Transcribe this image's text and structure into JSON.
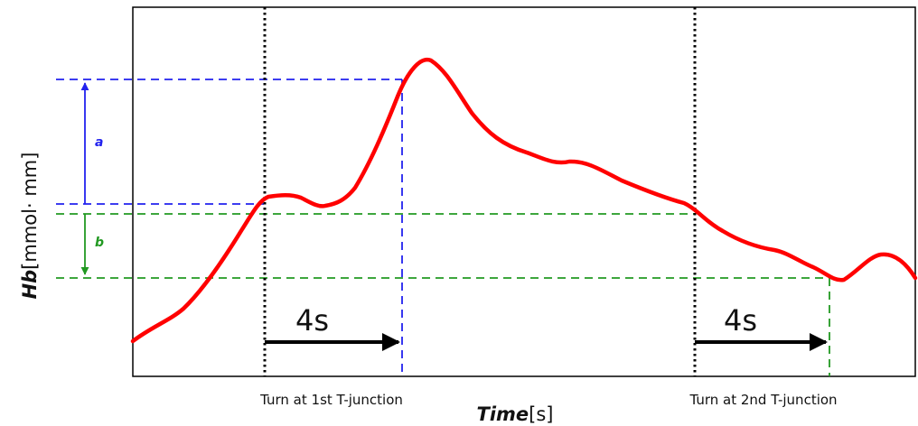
{
  "axes": {
    "y_title_main": "Hb",
    "y_title_unit": "[mmol· mm]",
    "x_title_main": "Time",
    "x_title_unit": "[s]"
  },
  "events": {
    "first": "Turn at 1st T-junction",
    "second": "Turn at 2nd T-junction"
  },
  "intervals": {
    "first": "4s",
    "second": "4s"
  },
  "annotations": {
    "a": "a",
    "b": "b"
  },
  "colors": {
    "curve": "#ff0000",
    "a_marker": "#2222ee",
    "b_marker": "#229922",
    "event_line": "#000000",
    "frame": "#000000"
  }
}
